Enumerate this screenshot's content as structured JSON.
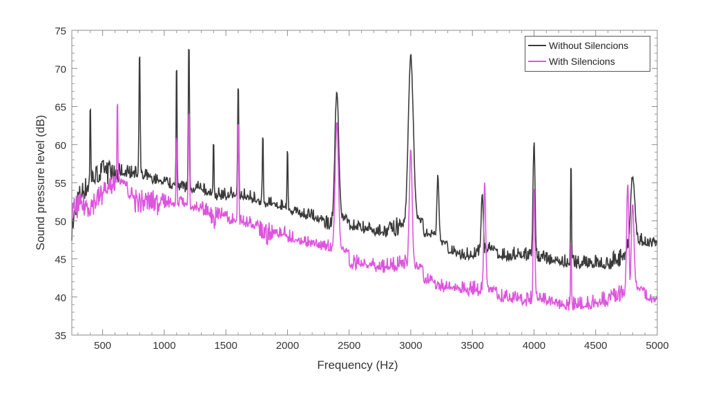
{
  "chart_data": {
    "type": "line",
    "title": "",
    "xlabel": "Frequency (Hz)",
    "ylabel": "Sound pressure level (dB)",
    "xlim": [
      250,
      5000
    ],
    "ylim": [
      35,
      75
    ],
    "xticks": [
      500,
      1000,
      1500,
      2000,
      2500,
      3000,
      3500,
      4000,
      4500,
      5000
    ],
    "yticks": [
      35,
      40,
      45,
      50,
      55,
      60,
      65,
      70,
      75
    ],
    "grid": false,
    "legend_position": "top-right",
    "series": [
      {
        "name": "Without Silencions",
        "color": "#3a3a3a",
        "x": [
          250,
          300,
          400,
          500,
          600,
          700,
          800,
          900,
          1000,
          1100,
          1200,
          1300,
          1400,
          1500,
          1600,
          1700,
          1800,
          1900,
          2000,
          2100,
          2200,
          2300,
          2400,
          2500,
          2600,
          2700,
          2800,
          2900,
          3000,
          3100,
          3200,
          3300,
          3400,
          3500,
          3600,
          3700,
          3800,
          3900,
          4000,
          4100,
          4200,
          4300,
          4400,
          4500,
          4600,
          4700,
          4800,
          4900,
          5000
        ],
        "y": [
          49,
          53,
          55,
          56.5,
          56,
          56,
          55.5,
          55,
          54.5,
          54,
          54,
          53.5,
          53,
          53,
          53,
          52.5,
          52,
          51.5,
          51,
          50.5,
          50,
          49,
          50,
          49,
          48.5,
          48,
          48,
          49,
          50,
          48,
          47,
          45.5,
          45,
          45,
          46,
          45,
          45,
          45,
          45,
          44.5,
          44,
          44,
          44,
          44,
          44,
          45,
          47,
          47,
          46
        ],
        "peaks": [
          [
            400,
            66,
            8
          ],
          [
            800,
            73.3,
            10
          ],
          [
            1100,
            72.3,
            8
          ],
          [
            1200,
            74.3,
            10
          ],
          [
            1400,
            60.7,
            8
          ],
          [
            1600,
            69,
            10
          ],
          [
            1800,
            62.3,
            8
          ],
          [
            2000,
            60,
            8
          ],
          [
            2400,
            67.2,
            35
          ],
          [
            3000,
            71.8,
            45
          ],
          [
            3220,
            56,
            20
          ],
          [
            3580,
            53.5,
            20
          ],
          [
            4000,
            60.5,
            18
          ],
          [
            4300,
            59.2,
            8
          ],
          [
            4800,
            56,
            40
          ]
        ]
      },
      {
        "name": "With Silencions",
        "color": "#dd55dd",
        "x": [
          250,
          300,
          400,
          500,
          600,
          700,
          800,
          900,
          1000,
          1100,
          1200,
          1300,
          1400,
          1500,
          1600,
          1700,
          1800,
          1900,
          2000,
          2100,
          2200,
          2300,
          2400,
          2500,
          2600,
          2700,
          2800,
          2900,
          3000,
          3100,
          3200,
          3300,
          3400,
          3500,
          3600,
          3700,
          3800,
          3900,
          4000,
          4100,
          4200,
          4300,
          4400,
          4500,
          4600,
          4700,
          4800,
          4900,
          5000
        ],
        "y": [
          51,
          52,
          52,
          53.5,
          55,
          53,
          52.5,
          52.5,
          52,
          52,
          51.5,
          51,
          50.5,
          50,
          49.5,
          49,
          48.5,
          48,
          47.5,
          47,
          46.5,
          46,
          46,
          44,
          44,
          43.5,
          43.5,
          44,
          44,
          42,
          41,
          41,
          40.5,
          40.5,
          41,
          39.5,
          39.5,
          39,
          39.5,
          39,
          38.5,
          38.5,
          38.5,
          39,
          39.5,
          40,
          41,
          39.5,
          38.5
        ],
        "peaks": [
          [
            620,
            66.7,
            8
          ],
          [
            1100,
            62,
            8
          ],
          [
            1200,
            65.5,
            10
          ],
          [
            1600,
            64,
            10
          ],
          [
            2400,
            63,
            30
          ],
          [
            3000,
            59.5,
            25
          ],
          [
            3600,
            55.3,
            18
          ],
          [
            4000,
            54.5,
            15
          ],
          [
            4300,
            48,
            8
          ],
          [
            4760,
            55,
            20
          ],
          [
            4800,
            52,
            25
          ]
        ]
      }
    ]
  }
}
